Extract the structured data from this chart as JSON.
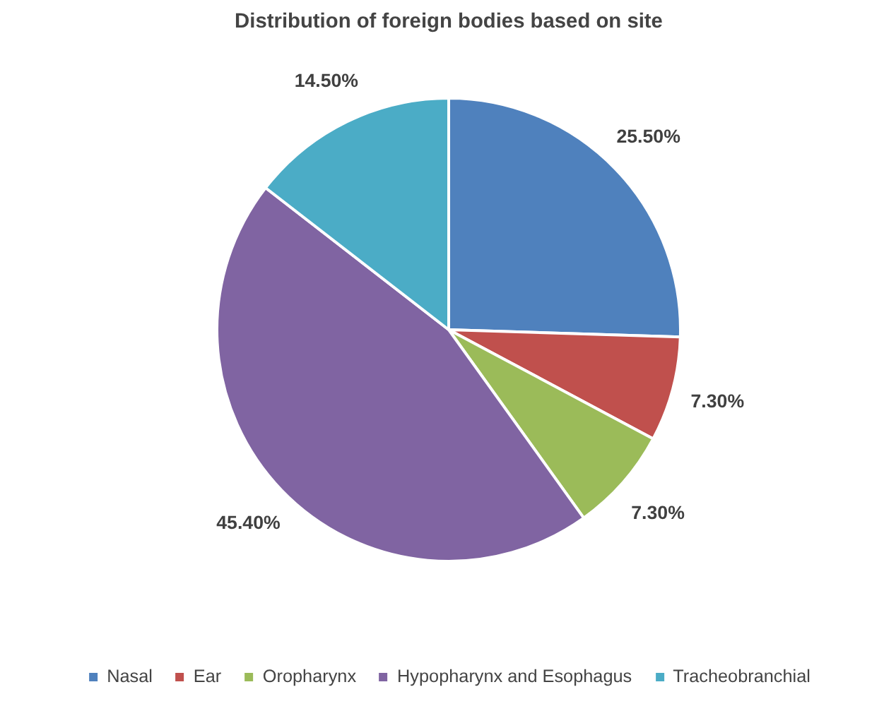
{
  "chart_data": {
    "type": "pie",
    "title": "Distribution of foreign bodies based on site",
    "categories": [
      "Nasal",
      "Ear",
      "Oropharynx",
      "Hypopharynx and Esophagus",
      "Tracheobranchial"
    ],
    "values": [
      25.5,
      7.3,
      7.3,
      45.4,
      14.5
    ],
    "colors": [
      "#4f81bd",
      "#c0504d",
      "#9bbb59",
      "#8064a2",
      "#4bacc6"
    ],
    "value_labels": [
      "25.50%",
      "7.30%",
      "7.30%",
      "45.40%",
      "14.50%"
    ],
    "legend": "bottom"
  }
}
